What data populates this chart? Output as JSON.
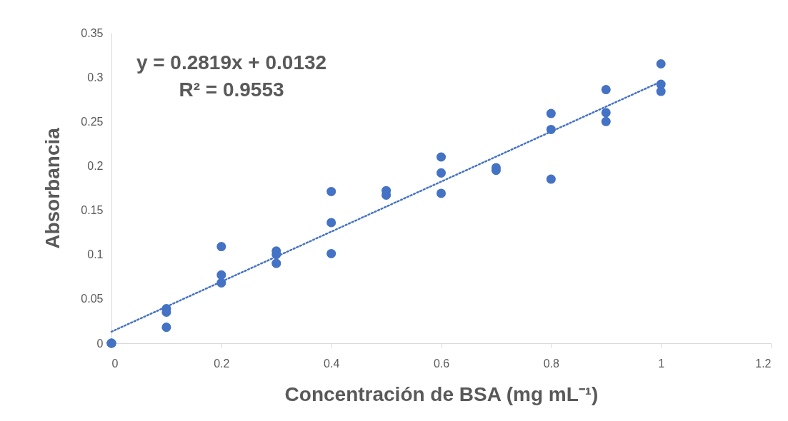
{
  "chart_data": {
    "type": "scatter",
    "xlabel": "Concentración de BSA (mg mL⁻¹)",
    "ylabel": "Absorbancia",
    "annotations": [
      "y = 0.2819x + 0.0132",
      "R² = 0.9553"
    ],
    "xlim": [
      0,
      1.2
    ],
    "xticks": [
      0,
      0.2,
      0.4,
      0.6,
      0.8,
      1,
      1.2
    ],
    "ylim": [
      0,
      0.35
    ],
    "yticks": [
      0,
      0.05,
      0.1,
      0.15,
      0.2,
      0.25,
      0.3,
      0.35
    ],
    "grid": false,
    "series": [
      {
        "marker": "circle",
        "color": "#4472c4",
        "x": [
          0,
          0,
          0,
          0.1,
          0.1,
          0.1,
          0.2,
          0.2,
          0.2,
          0.3,
          0.3,
          0.3,
          0.4,
          0.4,
          0.4,
          0.5,
          0.5,
          0.6,
          0.6,
          0.6,
          0.7,
          0.7,
          0.8,
          0.8,
          0.8,
          0.9,
          0.9,
          0.9,
          1,
          1,
          1
        ],
        "values": [
          0,
          0,
          0,
          0.039,
          0.035,
          0.018,
          0.109,
          0.077,
          0.068,
          0.104,
          0.1,
          0.09,
          0.171,
          0.136,
          0.101,
          0.172,
          0.167,
          0.21,
          0.192,
          0.169,
          0.198,
          0.195,
          0.259,
          0.241,
          0.185,
          0.286,
          0.26,
          0.25,
          0.315,
          0.292,
          0.284
        ]
      },
      {
        "type": "line",
        "color": "#4472c4",
        "line_style": "dotted",
        "x": [
          0,
          1
        ],
        "values": [
          0.013,
          0.295
        ]
      }
    ]
  }
}
